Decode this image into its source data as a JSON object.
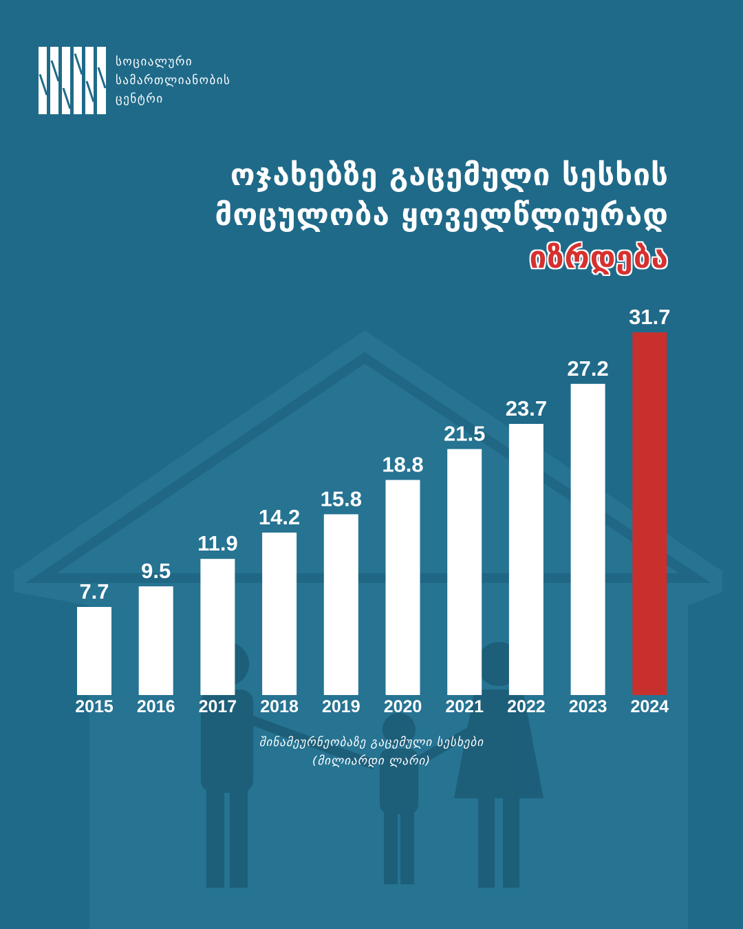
{
  "logo": {
    "lines": [
      "სოციალური",
      "სამართლიანობის",
      "ცენტრი"
    ]
  },
  "headline": {
    "line1": "ოჯახებზე გაცემული სესხის",
    "line2": "მოცულობა ყოველწლიურად",
    "accent": "იზრდება"
  },
  "colors": {
    "background": "#1f6a89",
    "bar_default": "#ffffff",
    "bar_highlight": "#c8302e",
    "accent_text": "#d7302f"
  },
  "chart_data": {
    "type": "bar",
    "categories": [
      "2015",
      "2016",
      "2017",
      "2018",
      "2019",
      "2020",
      "2021",
      "2022",
      "2023",
      "2024"
    ],
    "values": [
      7.7,
      9.5,
      11.9,
      14.2,
      15.8,
      18.8,
      21.5,
      23.7,
      27.2,
      31.7
    ],
    "highlight_category": "2024",
    "ylim": [
      0,
      31.7
    ],
    "grid": false,
    "xlabel": "შინამეურნეობაზე გაცემული სესხები",
    "unit": "(მილიარდი ლარი)"
  }
}
